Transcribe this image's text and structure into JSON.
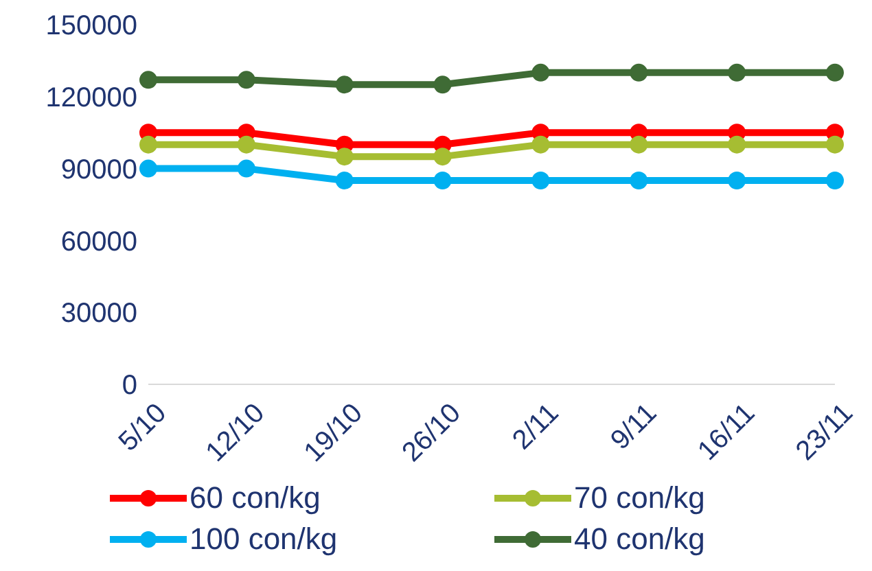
{
  "chart_data": {
    "type": "line",
    "categories": [
      "5/10",
      "12/10",
      "19/10",
      "26/10",
      "2/11",
      "9/11",
      "16/11",
      "23/11"
    ],
    "series": [
      {
        "name": "60 con/kg",
        "color": "#ff0000",
        "values": [
          105000,
          105000,
          100000,
          100000,
          105000,
          105000,
          105000,
          105000
        ]
      },
      {
        "name": "70 con/kg",
        "color": "#a6bd32",
        "values": [
          100000,
          100000,
          95000,
          95000,
          100000,
          100000,
          100000,
          100000
        ]
      },
      {
        "name": "100 con/kg",
        "color": "#00b0f0",
        "values": [
          90000,
          90000,
          85000,
          85000,
          85000,
          85000,
          85000,
          85000
        ]
      },
      {
        "name": "40 con/kg",
        "color": "#3f6b35",
        "values": [
          127000,
          127000,
          125000,
          125000,
          130000,
          130000,
          130000,
          130000
        ]
      }
    ],
    "ylim": [
      0,
      150000
    ],
    "yticks": [
      0,
      30000,
      60000,
      90000,
      120000,
      150000
    ],
    "grid": false,
    "legend": "bottom",
    "marker": "circle",
    "line_style": "solid"
  }
}
